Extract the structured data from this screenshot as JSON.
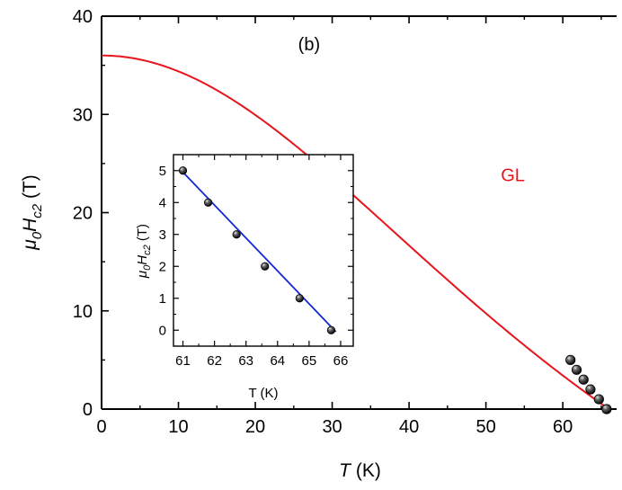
{
  "chart_data": [
    {
      "type": "line+scatter",
      "role": "main",
      "xlabel": {
        "italic": "T",
        "rest": " (K)"
      },
      "ylabel": {
        "mu": "μ",
        "mu_sub": "0",
        "H": "H",
        "H_sub": "c2",
        "rest": " (T)"
      },
      "xlim": [
        0,
        67
      ],
      "ylim": [
        0,
        40
      ],
      "xticks": [
        0,
        10,
        20,
        30,
        40,
        50,
        60
      ],
      "yticks": [
        0,
        10,
        20,
        30,
        40
      ],
      "xticks_minor": [
        5,
        15,
        25,
        35,
        45,
        55,
        65
      ],
      "yticks_minor": [
        5,
        15,
        25,
        35
      ],
      "annotations": [
        {
          "text": "(b)",
          "x": 27,
          "y": 36.5,
          "color": "#000000"
        },
        {
          "text": "GL",
          "x": 53.5,
          "y": 23.2,
          "color": "#e8141c"
        }
      ],
      "series": [
        {
          "kind": "curve",
          "color": "#e8141c",
          "model": "GL",
          "Hc2_0": 36.0,
          "Tc": 66.0
        },
        {
          "kind": "scatter",
          "color": "#000000",
          "x": [
            61.0,
            61.8,
            62.7,
            63.6,
            64.7,
            65.7
          ],
          "y": [
            5,
            4,
            3,
            2,
            1,
            0
          ]
        }
      ]
    },
    {
      "type": "line+scatter",
      "role": "inset",
      "xlabel": "T (K)",
      "ylabel": {
        "mu": "μ",
        "mu_sub": "0",
        "H": "H",
        "H_sub": "c2",
        "rest": " (T)"
      },
      "xlim": [
        60.7,
        66.4
      ],
      "ylim": [
        -0.5,
        5.5
      ],
      "xticks": [
        61,
        62,
        63,
        64,
        65,
        66
      ],
      "yticks": [
        0,
        1,
        2,
        3,
        4,
        5
      ],
      "series": [
        {
          "kind": "line",
          "color": "#1428d8",
          "x": [
            61.0,
            65.85
          ],
          "y": [
            4.95,
            -0.05
          ]
        },
        {
          "kind": "scatter",
          "color": "#000000",
          "x": [
            61.0,
            61.8,
            62.7,
            63.6,
            64.7,
            65.7
          ],
          "y": [
            5,
            4,
            3,
            2,
            1,
            0
          ]
        }
      ]
    }
  ]
}
